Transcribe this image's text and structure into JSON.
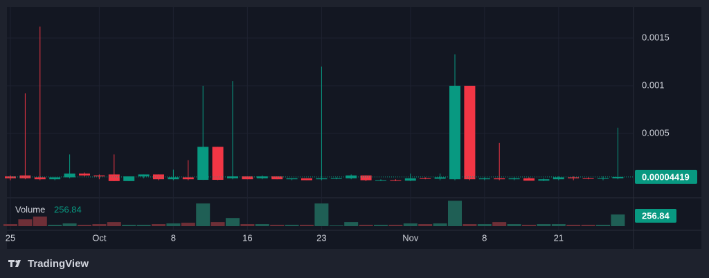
{
  "chart_data": {
    "type": "candlestick",
    "categories": [
      "25",
      null,
      null,
      null,
      null,
      null,
      "Oct",
      null,
      null,
      null,
      null,
      "8",
      null,
      null,
      null,
      null,
      "16",
      null,
      null,
      null,
      null,
      "23",
      null,
      null,
      null,
      null,
      null,
      "Nov",
      null,
      null,
      null,
      null,
      "8",
      null,
      null,
      null,
      null,
      "21",
      null,
      null,
      null,
      null
    ],
    "open": [
      5e-05,
      6e-05,
      4e-05,
      2e-05,
      4e-05,
      8e-05,
      6e-05,
      7e-05,
      1e-06,
      5e-05,
      7e-05,
      2e-05,
      4e-05,
      1.4e-05,
      0.00036,
      3e-05,
      5e-05,
      3e-05,
      5e-05,
      2e-05,
      3e-05,
      2e-05,
      3e-05,
      3e-05,
      6e-05,
      1e-05,
      1e-05,
      5e-06,
      3e-05,
      2.5e-05,
      2e-05,
      0.001,
      2e-05,
      3e-05,
      2e-05,
      3e-05,
      5e-06,
      2e-05,
      4e-05,
      3e-05,
      2.5e-05,
      3e-05
    ],
    "high": [
      6e-05,
      0.00092,
      0.00162,
      4e-05,
      0.00028,
      9e-05,
      7e-05,
      0.00028,
      5e-05,
      7e-05,
      7e-05,
      0.00012,
      0.00022,
      0.001,
      0.00036,
      0.00105,
      5e-05,
      6e-05,
      5e-05,
      3e-05,
      3e-05,
      0.0012,
      4e-05,
      7e-05,
      6e-05,
      2e-05,
      2e-05,
      8e-05,
      4e-05,
      8e-05,
      0.00133,
      0.001,
      4e-05,
      0.0004,
      4e-05,
      4e-05,
      3e-05,
      5e-05,
      5e-05,
      4e-05,
      5e-05,
      0.00056
    ],
    "low": [
      1e-05,
      2e-05,
      1e-05,
      1e-05,
      3e-05,
      5e-05,
      2e-05,
      0,
      0,
      3e-05,
      1e-05,
      1e-05,
      1e-05,
      1.2e-05,
      1e-05,
      2e-05,
      2e-05,
      2e-05,
      2e-05,
      1e-05,
      1e-05,
      1e-05,
      2e-05,
      2e-05,
      0,
      0,
      0,
      0,
      2e-05,
      1e-05,
      1e-05,
      1e-05,
      1e-05,
      1e-05,
      1e-05,
      1e-05,
      0,
      1e-05,
      1e-05,
      2e-05,
      1e-05,
      2e-05
    ],
    "close": [
      3e-05,
      3e-05,
      2e-05,
      4e-05,
      8e-05,
      6e-05,
      5e-05,
      1e-06,
      5e-05,
      7e-05,
      2e-05,
      4e-05,
      2e-05,
      0.00036,
      1.4e-05,
      5e-05,
      2e-05,
      5e-05,
      2e-05,
      3e-05,
      1e-05,
      3e-05,
      3e-05,
      6e-05,
      1e-05,
      1e-05,
      5e-06,
      3e-05,
      2.5e-05,
      4e-05,
      0.001,
      2e-05,
      3e-05,
      2e-05,
      3e-05,
      5e-06,
      2e-05,
      4e-05,
      3e-05,
      2.5e-05,
      3e-05,
      4.419e-05
    ],
    "volume_label": "Volume",
    "volume": [
      45,
      150,
      210,
      30,
      60,
      30,
      45,
      90,
      30,
      30,
      45,
      60,
      75,
      500,
      90,
      180,
      45,
      45,
      30,
      30,
      30,
      500,
      15,
      90,
      30,
      30,
      30,
      60,
      45,
      60,
      560,
      45,
      45,
      90,
      45,
      30,
      45,
      45,
      30,
      30,
      30,
      256.84
    ],
    "ylim": [
      -0.000167,
      0.001812
    ],
    "yticks": [
      0.0015,
      0.001,
      0.0005
    ],
    "volume_lim": [
      0,
      580
    ],
    "up_color": "#089981",
    "down_color": "#f23645",
    "volume_up_color": "#1f5f55",
    "volume_down_color": "#6e2f37",
    "grid": true
  },
  "footer": {
    "brand": "TradingView"
  }
}
